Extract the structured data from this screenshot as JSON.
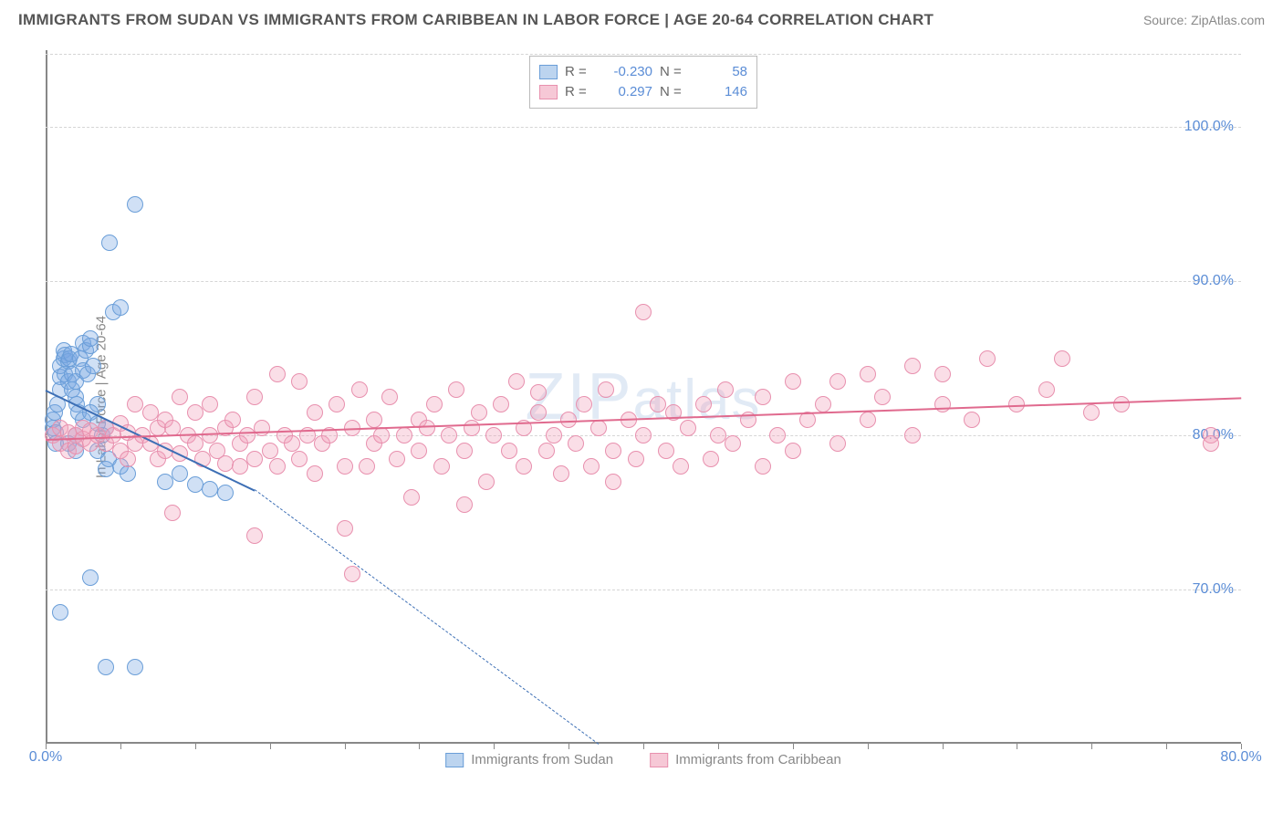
{
  "header": {
    "title": "IMMIGRANTS FROM SUDAN VS IMMIGRANTS FROM CARIBBEAN IN LABOR FORCE | AGE 20-64 CORRELATION CHART",
    "source": "Source: ZipAtlas.com"
  },
  "chart": {
    "type": "scatter",
    "ylabel": "In Labor Force | Age 20-64",
    "xlim": [
      0,
      80
    ],
    "ylim": [
      60,
      105
    ],
    "y_ticks": [
      70,
      80,
      90,
      100
    ],
    "y_tick_labels": [
      "70.0%",
      "80.0%",
      "90.0%",
      "100.0%"
    ],
    "x_ticks_pos": [
      0,
      80
    ],
    "x_tick_labels": [
      "0.0%",
      "80.0%"
    ],
    "x_minor_ticks": [
      0,
      5,
      10,
      15,
      20,
      25,
      30,
      35,
      40,
      45,
      50,
      55,
      60,
      65,
      70,
      75,
      80
    ],
    "grid_color": "#d5d5d5",
    "axis_color": "#888888",
    "background_color": "#ffffff",
    "dot_radius": 9,
    "dot_border": 1,
    "watermark": "ZIPatlas",
    "series": [
      {
        "name": "Immigrants from Sudan",
        "color_fill": "rgba(120,165,225,0.35)",
        "color_stroke": "#6a9ed8",
        "swatch_fill": "#bcd4ef",
        "swatch_stroke": "#6a9ed8",
        "r_value": "-0.230",
        "n_value": "58",
        "trend": {
          "x1": 0,
          "y1": 83.0,
          "x2": 14,
          "y2": 76.5,
          "dash_x2": 37,
          "dash_y2": 60,
          "color": "#3d6fb5"
        },
        "points": [
          [
            0.5,
            80.5
          ],
          [
            0.5,
            81.0
          ],
          [
            0.6,
            81.5
          ],
          [
            0.7,
            80.2
          ],
          [
            0.7,
            79.5
          ],
          [
            0.8,
            82.0
          ],
          [
            1.0,
            83.0
          ],
          [
            1.0,
            83.8
          ],
          [
            1.0,
            84.5
          ],
          [
            1.2,
            85.0
          ],
          [
            1.2,
            85.5
          ],
          [
            1.3,
            84.0
          ],
          [
            1.3,
            85.2
          ],
          [
            1.5,
            83.5
          ],
          [
            1.5,
            84.8
          ],
          [
            1.6,
            85.0
          ],
          [
            1.7,
            85.3
          ],
          [
            1.8,
            84.0
          ],
          [
            1.8,
            83.0
          ],
          [
            2.0,
            82.5
          ],
          [
            2.0,
            83.5
          ],
          [
            2.1,
            82.0
          ],
          [
            2.2,
            81.5
          ],
          [
            2.3,
            85.0
          ],
          [
            2.5,
            84.2
          ],
          [
            2.5,
            86.0
          ],
          [
            2.7,
            85.5
          ],
          [
            2.8,
            84.0
          ],
          [
            3.0,
            85.8
          ],
          [
            3.0,
            86.3
          ],
          [
            3.2,
            84.5
          ],
          [
            3.5,
            79.0
          ],
          [
            3.5,
            82.0
          ],
          [
            3.8,
            80.0
          ],
          [
            4.0,
            77.8
          ],
          [
            4.0,
            80.5
          ],
          [
            4.2,
            78.5
          ],
          [
            4.5,
            88.0
          ],
          [
            5.0,
            88.3
          ],
          [
            5.0,
            78.0
          ],
          [
            5.5,
            77.5
          ],
          [
            6.0,
            95.0
          ],
          [
            4.3,
            92.5
          ],
          [
            1.0,
            68.5
          ],
          [
            3.0,
            70.8
          ],
          [
            4.0,
            65.0
          ],
          [
            6.0,
            65.0
          ],
          [
            8.0,
            77.0
          ],
          [
            9.0,
            77.5
          ],
          [
            10.0,
            76.8
          ],
          [
            11.0,
            76.5
          ],
          [
            12.0,
            76.3
          ],
          [
            2.0,
            80.0
          ],
          [
            2.5,
            81.0
          ],
          [
            3.0,
            81.5
          ],
          [
            3.5,
            80.8
          ],
          [
            1.5,
            79.5
          ],
          [
            2.0,
            79.0
          ]
        ]
      },
      {
        "name": "Immigrants from Caribbean",
        "color_fill": "rgba(240,160,185,0.35)",
        "color_stroke": "#e890ae",
        "swatch_fill": "#f6c8d6",
        "swatch_stroke": "#e890ae",
        "r_value": "0.297",
        "n_value": "146",
        "trend": {
          "x1": 0,
          "y1": 79.8,
          "x2": 80,
          "y2": 82.5,
          "color": "#e06a8e"
        },
        "points": [
          [
            0.5,
            80.0
          ],
          [
            1.0,
            80.5
          ],
          [
            1.0,
            79.5
          ],
          [
            1.5,
            80.2
          ],
          [
            1.5,
            79.0
          ],
          [
            2.0,
            80.0
          ],
          [
            2.0,
            79.3
          ],
          [
            2.5,
            79.8
          ],
          [
            2.5,
            80.5
          ],
          [
            3.0,
            79.5
          ],
          [
            3.0,
            80.3
          ],
          [
            3.5,
            80.0
          ],
          [
            4.0,
            79.5
          ],
          [
            4.0,
            80.5
          ],
          [
            4.5,
            80.0
          ],
          [
            5.0,
            79.0
          ],
          [
            5.0,
            80.8
          ],
          [
            5.5,
            80.2
          ],
          [
            5.5,
            78.5
          ],
          [
            6.0,
            79.5
          ],
          [
            6.0,
            82.0
          ],
          [
            6.5,
            80.0
          ],
          [
            7.0,
            79.5
          ],
          [
            7.0,
            81.5
          ],
          [
            7.5,
            80.5
          ],
          [
            7.5,
            78.5
          ],
          [
            8.0,
            79.0
          ],
          [
            8.0,
            81.0
          ],
          [
            8.5,
            80.5
          ],
          [
            9.0,
            78.8
          ],
          [
            9.0,
            82.5
          ],
          [
            9.5,
            80.0
          ],
          [
            10.0,
            79.5
          ],
          [
            10.0,
            81.5
          ],
          [
            10.5,
            78.5
          ],
          [
            11.0,
            80.0
          ],
          [
            11.0,
            82.0
          ],
          [
            11.5,
            79.0
          ],
          [
            12.0,
            78.2
          ],
          [
            12.0,
            80.5
          ],
          [
            12.5,
            81.0
          ],
          [
            13.0,
            79.5
          ],
          [
            13.0,
            78.0
          ],
          [
            13.5,
            80.0
          ],
          [
            14.0,
            82.5
          ],
          [
            14.0,
            78.5
          ],
          [
            14.5,
            80.5
          ],
          [
            15.0,
            79.0
          ],
          [
            15.5,
            84.0
          ],
          [
            15.5,
            78.0
          ],
          [
            16.0,
            80.0
          ],
          [
            16.5,
            79.5
          ],
          [
            17.0,
            83.5
          ],
          [
            17.0,
            78.5
          ],
          [
            17.5,
            80.0
          ],
          [
            18.0,
            81.5
          ],
          [
            18.0,
            77.5
          ],
          [
            18.5,
            79.5
          ],
          [
            19.0,
            80.0
          ],
          [
            19.5,
            82.0
          ],
          [
            20.0,
            78.0
          ],
          [
            20.0,
            74.0
          ],
          [
            20.5,
            80.5
          ],
          [
            21.0,
            83.0
          ],
          [
            21.5,
            78.0
          ],
          [
            22.0,
            79.5
          ],
          [
            22.0,
            81.0
          ],
          [
            22.5,
            80.0
          ],
          [
            23.0,
            82.5
          ],
          [
            23.5,
            78.5
          ],
          [
            24.0,
            80.0
          ],
          [
            24.5,
            76.0
          ],
          [
            25.0,
            81.0
          ],
          [
            25.0,
            79.0
          ],
          [
            25.5,
            80.5
          ],
          [
            26.0,
            82.0
          ],
          [
            26.5,
            78.0
          ],
          [
            27.0,
            80.0
          ],
          [
            27.5,
            83.0
          ],
          [
            28.0,
            79.0
          ],
          [
            28.0,
            75.5
          ],
          [
            28.5,
            80.5
          ],
          [
            29.0,
            81.5
          ],
          [
            29.5,
            77.0
          ],
          [
            30.0,
            80.0
          ],
          [
            30.5,
            82.0
          ],
          [
            31.0,
            79.0
          ],
          [
            31.5,
            83.5
          ],
          [
            32.0,
            78.0
          ],
          [
            32.0,
            80.5
          ],
          [
            33.0,
            81.5
          ],
          [
            33.0,
            82.8
          ],
          [
            33.5,
            79.0
          ],
          [
            34.0,
            80.0
          ],
          [
            34.5,
            77.5
          ],
          [
            35.0,
            81.0
          ],
          [
            35.5,
            79.5
          ],
          [
            36.0,
            82.0
          ],
          [
            36.5,
            78.0
          ],
          [
            37.0,
            80.5
          ],
          [
            37.5,
            83.0
          ],
          [
            38.0,
            79.0
          ],
          [
            38.0,
            77.0
          ],
          [
            39.0,
            81.0
          ],
          [
            39.5,
            78.5
          ],
          [
            40.0,
            80.0
          ],
          [
            40.0,
            88.0
          ],
          [
            41.0,
            82.0
          ],
          [
            41.5,
            79.0
          ],
          [
            42.0,
            81.5
          ],
          [
            42.5,
            78.0
          ],
          [
            43.0,
            80.5
          ],
          [
            44.0,
            82.0
          ],
          [
            44.5,
            78.5
          ],
          [
            45.0,
            80.0
          ],
          [
            45.5,
            83.0
          ],
          [
            46.0,
            79.5
          ],
          [
            47.0,
            81.0
          ],
          [
            48.0,
            82.5
          ],
          [
            48.0,
            78.0
          ],
          [
            49.0,
            80.0
          ],
          [
            50.0,
            83.5
          ],
          [
            50.0,
            79.0
          ],
          [
            51.0,
            81.0
          ],
          [
            52.0,
            82.0
          ],
          [
            53.0,
            83.5
          ],
          [
            53.0,
            79.5
          ],
          [
            55.0,
            84.0
          ],
          [
            55.0,
            81.0
          ],
          [
            56.0,
            82.5
          ],
          [
            58.0,
            84.5
          ],
          [
            58.0,
            80.0
          ],
          [
            60.0,
            82.0
          ],
          [
            60.0,
            84.0
          ],
          [
            62.0,
            81.0
          ],
          [
            63.0,
            85.0
          ],
          [
            65.0,
            82.0
          ],
          [
            67.0,
            83.0
          ],
          [
            68.0,
            85.0
          ],
          [
            70.0,
            81.5
          ],
          [
            72.0,
            82.0
          ],
          [
            78.0,
            80.0
          ],
          [
            78.0,
            79.5
          ],
          [
            20.5,
            71.0
          ],
          [
            14.0,
            73.5
          ],
          [
            8.5,
            75.0
          ]
        ]
      }
    ],
    "legend_top": {
      "r_label": "R =",
      "n_label": "N ="
    },
    "legend_bottom_labels": [
      "Immigrants from Sudan",
      "Immigrants from Caribbean"
    ]
  }
}
